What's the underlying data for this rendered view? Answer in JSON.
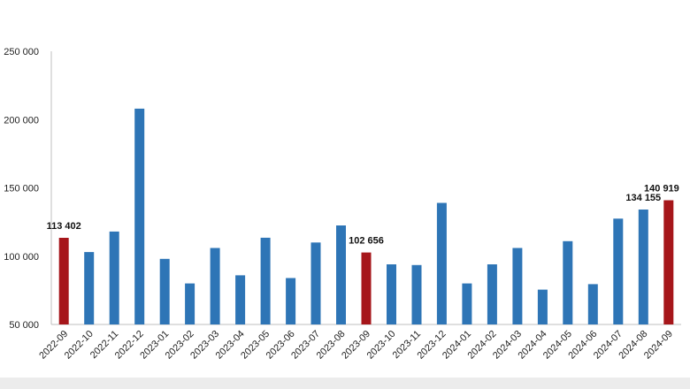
{
  "chart_data": {
    "type": "bar",
    "title": "",
    "xlabel": "",
    "ylabel": "",
    "ylim": [
      50000,
      250000
    ],
    "yticks": [
      {
        "value": 50000,
        "label": "50 000"
      },
      {
        "value": 100000,
        "label": "100 000"
      },
      {
        "value": 150000,
        "label": "150 000"
      },
      {
        "value": 200000,
        "label": "200 000"
      },
      {
        "value": 250000,
        "label": "250 000"
      }
    ],
    "grid": false,
    "legend": "none",
    "categories": [
      "2022-09",
      "2022-10",
      "2022-11",
      "2022-12",
      "2023-01",
      "2023-02",
      "2023-03",
      "2023-04",
      "2023-05",
      "2023-06",
      "2023-07",
      "2023-08",
      "2023-09",
      "2023-10",
      "2023-11",
      "2023-12",
      "2024-01",
      "2024-02",
      "2024-03",
      "2024-04",
      "2024-05",
      "2024-06",
      "2024-07",
      "2024-08",
      "2024-09"
    ],
    "values": [
      113402,
      103000,
      118000,
      208000,
      98000,
      80000,
      106000,
      86000,
      113500,
      84000,
      110000,
      122500,
      102656,
      94000,
      93500,
      139000,
      80000,
      94000,
      106000,
      75500,
      111000,
      79500,
      127500,
      134155,
      140919
    ],
    "highlighted": [
      0,
      12,
      24
    ],
    "data_labels": [
      {
        "index": 0,
        "text": "113 402"
      },
      {
        "index": 12,
        "text": "102 656"
      },
      {
        "index": 23,
        "text": "134 155"
      },
      {
        "index": 24,
        "text": "140 919"
      }
    ],
    "colors": {
      "default": "#2e75b6",
      "highlight": "#a6161a",
      "axis": "#bfbfbf",
      "footer": "#ececec"
    }
  }
}
